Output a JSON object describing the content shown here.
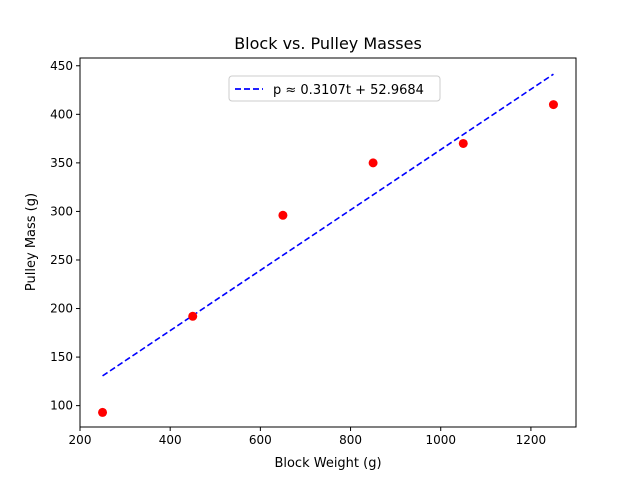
{
  "chart_data": {
    "type": "scatter",
    "title": "Block vs. Pulley Masses",
    "xlabel": "Block Weight (g)",
    "ylabel": "Pulley Mass (g)",
    "xlim": [
      200,
      1300
    ],
    "ylim": [
      78,
      458
    ],
    "xticks": [
      200,
      400,
      600,
      800,
      1000,
      1200
    ],
    "yticks": [
      100,
      150,
      200,
      250,
      300,
      350,
      400,
      450
    ],
    "grid": false,
    "legend_position": "upper center",
    "points": {
      "color": "#ff0000",
      "x": [
        250,
        450,
        650,
        850,
        1050,
        1250
      ],
      "y": [
        93,
        192,
        296,
        350,
        370,
        410
      ]
    },
    "fit_line": {
      "label": "p ≈ 0.3107t + 52.9684",
      "color": "#0000ff",
      "style": "dashed",
      "slope": 0.3107,
      "intercept": 52.9684,
      "x_range": [
        250,
        1250
      ]
    }
  }
}
